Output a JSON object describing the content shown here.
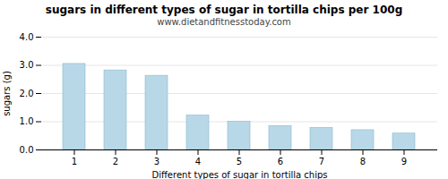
{
  "chart_data": {
    "type": "bar",
    "title": "sugars in different types of sugar in tortilla chips per 100g",
    "subtitle": "www.dietandfitnesstoday.com",
    "xlabel": "Different types of sugar in tortilla chips",
    "ylabel": "sugars (g)",
    "categories": [
      1,
      2,
      3,
      4,
      5,
      6,
      7,
      8,
      9
    ],
    "values": [
      3.05,
      2.82,
      2.63,
      1.22,
      1.0,
      0.85,
      0.78,
      0.7,
      0.58
    ],
    "color": "#b8d8e8",
    "ylim": [
      0.0,
      4.0
    ],
    "yticks": [
      {
        "value": 0,
        "label": "0.0"
      },
      {
        "value": 1,
        "label": "1.0"
      },
      {
        "value": 2,
        "label": "2.0"
      },
      {
        "value": 3,
        "label": "3.0"
      },
      {
        "value": 4,
        "label": "4.0"
      }
    ],
    "grid": true
  }
}
